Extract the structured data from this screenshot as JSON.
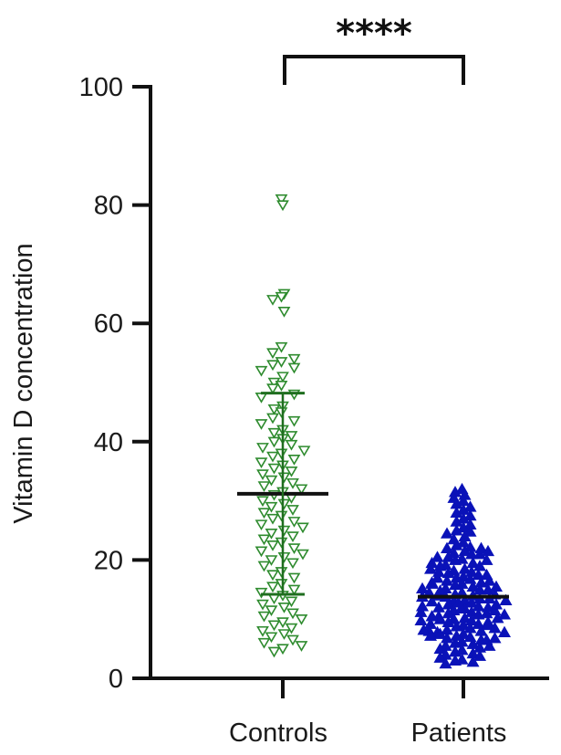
{
  "chart_data": {
    "type": "scatter",
    "ylabel": "Vitamin D concentration",
    "xlabel": "",
    "ylim": [
      0,
      100
    ],
    "yticks": [
      "0",
      "20",
      "40",
      "60",
      "80",
      "100"
    ],
    "categories": [
      "Controls",
      "Patients"
    ],
    "significance": "****",
    "grid": false,
    "series": [
      {
        "name": "Controls",
        "color": "#2e8b2e",
        "marker": "triangle-down-open",
        "mean": 31.2,
        "sd_low": 14.2,
        "sd_high": 48.2,
        "values": [
          81,
          80,
          65,
          64.5,
          64,
          62,
          56,
          55,
          54,
          53.5,
          53,
          52.5,
          52,
          51,
          50,
          49.5,
          49,
          48,
          47.5,
          46,
          45.5,
          45,
          44,
          43.5,
          43,
          42,
          41.5,
          41,
          40.5,
          40,
          39.5,
          39,
          38.5,
          38,
          37.5,
          37,
          36.5,
          36,
          35.5,
          35,
          34.5,
          34,
          33.5,
          33,
          32.5,
          32,
          31.5,
          31,
          30.5,
          30,
          29.5,
          29,
          28.5,
          28,
          27.5,
          27,
          26.5,
          26,
          25.5,
          25,
          24.5,
          24,
          23.5,
          23,
          22.5,
          22,
          21.5,
          21,
          20.5,
          20,
          19.5,
          19,
          18,
          17.5,
          17,
          16,
          15.5,
          15,
          14.5,
          14,
          13.5,
          13,
          12.5,
          12,
          11.5,
          11,
          10.5,
          10,
          9.5,
          9,
          8.5,
          8,
          7.5,
          7,
          6.5,
          6,
          5.5,
          5,
          4.5
        ]
      },
      {
        "name": "Patients",
        "color": "#0a12b8",
        "marker": "triangle-up-filled",
        "mean": 13.8,
        "sd_low": null,
        "sd_high": null,
        "values": [
          32,
          31.5,
          31,
          30.5,
          30,
          29.5,
          29,
          28.5,
          28,
          27.5,
          27,
          26.5,
          26,
          25.5,
          25,
          24.8,
          24.5,
          24,
          23.5,
          23,
          22.5,
          22.2,
          22,
          21.5,
          21.2,
          21,
          20.5,
          20.2,
          20,
          19.5,
          19.2,
          19,
          18.5,
          18.2,
          18,
          17.8,
          17.5,
          17.2,
          17,
          16.8,
          16.5,
          16.2,
          16,
          15.8,
          15.5,
          15.2,
          15,
          14.8,
          14.5,
          14.2,
          14,
          13.8,
          13.5,
          13.2,
          13,
          12.8,
          12.5,
          12.2,
          12,
          11.8,
          11.5,
          11.2,
          11,
          10.8,
          10.5,
          10.2,
          10,
          9.8,
          9.5,
          9.2,
          9,
          8.8,
          8.5,
          8.2,
          8,
          7.8,
          7.5,
          7.2,
          7,
          6.8,
          6.5,
          6.2,
          6,
          5.8,
          5.5,
          5.2,
          5,
          4.8,
          4.5,
          4.2,
          4,
          3.8,
          3.5,
          3.2,
          3,
          2.8,
          2.5,
          9,
          10,
          11,
          12,
          13,
          14,
          15,
          16,
          17,
          18,
          19,
          20,
          21,
          22,
          8,
          9.5,
          10.5,
          11.5,
          12.5,
          13.5,
          14.5,
          15.5,
          16.5,
          17.5,
          18.5,
          19.5,
          20.5,
          21.5,
          7.5,
          8.5,
          9.2,
          10.2,
          11.2,
          12.2,
          13.2,
          14.2,
          15.2,
          16.2,
          6.5,
          7.2,
          8.2,
          9.8,
          10.8,
          11.8,
          12.8,
          13.8,
          5.5,
          6.8,
          7.8
        ]
      }
    ]
  }
}
